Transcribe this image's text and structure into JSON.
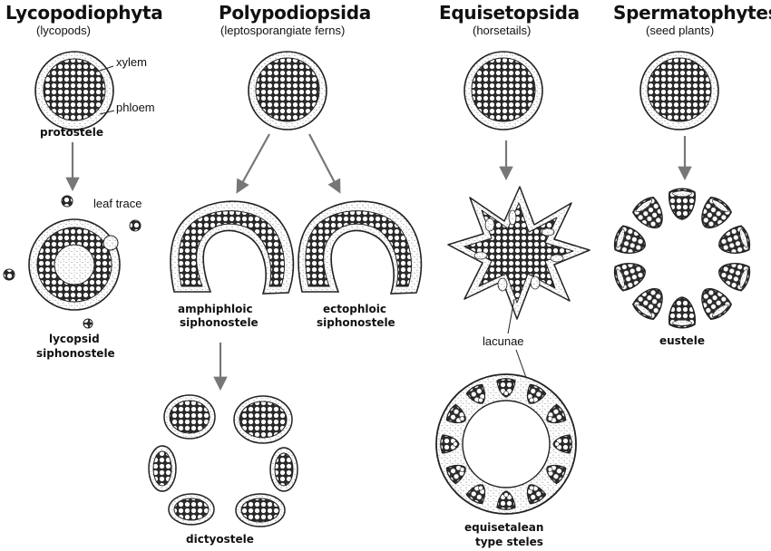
{
  "groups": [
    {
      "title": "Lycopodiophyta",
      "subtitle": "(lycopods)"
    },
    {
      "title": "Polypodiopsida",
      "subtitle": "(leptosporangiate ferns)"
    },
    {
      "title": "Equisetopsida",
      "subtitle": "(horsetails)"
    },
    {
      "title": "Spermatophytes",
      "subtitle": "(seed plants)"
    }
  ],
  "parts": {
    "xylem": "xylem",
    "phloem": "phloem",
    "leaf_trace": "leaf trace",
    "lacunae": "lacunae"
  },
  "steles": {
    "protostele": "protostele",
    "lycopsid_1": "lycopsid",
    "lycopsid_2": "siphonostele",
    "amphiphloic_1": "amphiphloic",
    "amphiphloic_2": "siphonostele",
    "ectophloic_1": "ectophloic",
    "ectophloic_2": "siphonostele",
    "dictyostele": "dictyostele",
    "eustele": "eustele",
    "equisetalean_1": "equisetalean",
    "equisetalean_2": "type steles"
  },
  "colors": {
    "ink": "#222222",
    "arrow": "#777777",
    "xylem_fill": "#ffffff",
    "phloem_stipple": "#999999"
  }
}
